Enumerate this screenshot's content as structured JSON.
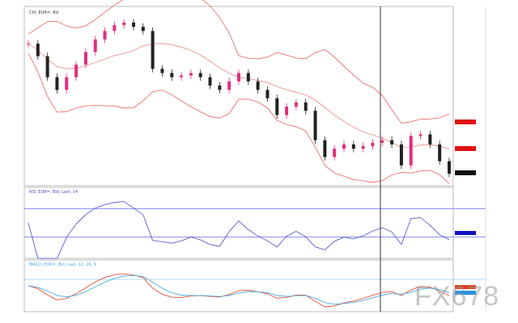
{
  "chart_data": [
    {
      "type": "candlestick",
      "panel": "price",
      "title": "Chf, EUR=, Bd",
      "overlay": "Bollinger bands",
      "ylim": [
        1.09,
        1.24
      ],
      "closes": [
        1.2089,
        1.1984,
        1.1808,
        1.1702,
        1.1808,
        1.1913,
        1.2019,
        1.2124,
        1.2195,
        1.2244,
        1.2265,
        1.223,
        1.2195,
        1.1878,
        1.1843,
        1.1808,
        1.1822,
        1.1843,
        1.1808,
        1.1738,
        1.1702,
        1.1773,
        1.1843,
        1.1773,
        1.1702,
        1.1632,
        1.1491,
        1.1562,
        1.1597,
        1.1527,
        1.1281,
        1.114,
        1.121,
        1.1246,
        1.121,
        1.1231,
        1.126,
        1.1281,
        1.1246,
        1.107,
        1.1316,
        1.133,
        1.1246,
        1.1105,
        1.1
      ]
    },
    {
      "type": "line",
      "panel": "rsi",
      "title": "RSI, EUR=, Bid, Last, 14",
      "ylim": [
        0,
        100
      ],
      "levels": [
        30,
        70
      ]
    },
    {
      "type": "line",
      "panel": "macd",
      "title": "MACD, EUR=, Bid, Last, 12, 26, 9",
      "series": [
        {
          "color": "#e8503a"
        },
        {
          "color": "#4aa8e0"
        }
      ]
    }
  ],
  "colors": {
    "up": "#e0307a",
    "down": "#222222",
    "band": "#e86060",
    "rsi": "#4a4acc",
    "level": "#6a6ae8",
    "macd": "#e8503a",
    "signal": "#4aa8e0",
    "crosshair": "#333333"
  },
  "watermark": "FX678"
}
